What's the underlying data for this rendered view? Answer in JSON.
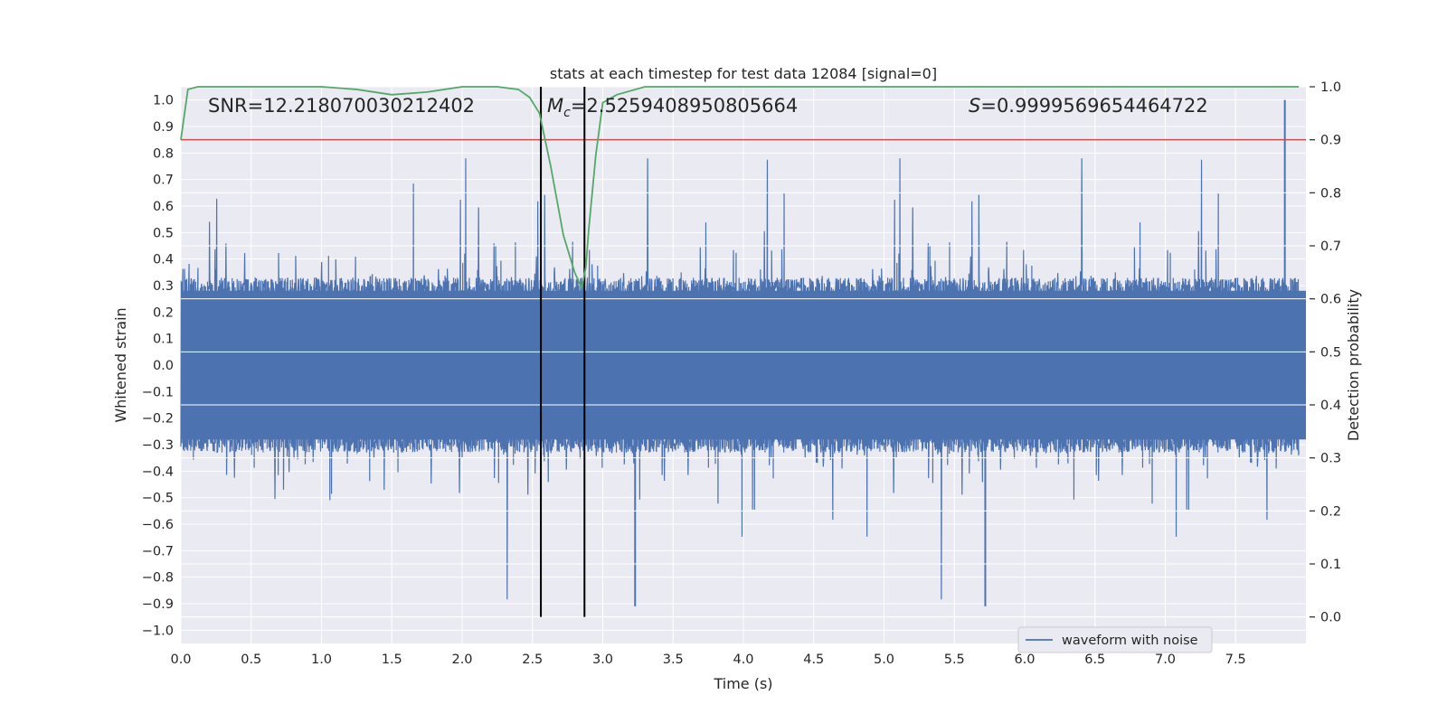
{
  "chart_data": {
    "type": "line",
    "title": "stats at each timestep for test data 12084 [signal=0]",
    "xlabel": "Time (s)",
    "ylabel_left": "Whitened strain",
    "ylabel_right": "Detection probability",
    "xlim": [
      0.0,
      8.0
    ],
    "ylim_left": [
      -1.05,
      1.05
    ],
    "ylim_right": [
      -0.05,
      1.0
    ],
    "x_ticks": [
      "0.0",
      "0.5",
      "1.0",
      "1.5",
      "2.0",
      "2.5",
      "3.0",
      "3.5",
      "4.0",
      "4.5",
      "5.0",
      "5.5",
      "6.0",
      "6.5",
      "7.0",
      "7.5"
    ],
    "y_ticks_left": [
      "-1.0",
      "-0.9",
      "-0.8",
      "-0.7",
      "-0.6",
      "-0.5",
      "-0.4",
      "-0.3",
      "-0.2",
      "-0.1",
      "0.0",
      "0.1",
      "0.2",
      "0.3",
      "0.4",
      "0.5",
      "0.6",
      "0.7",
      "0.8",
      "0.9",
      "1.0"
    ],
    "y_ticks_right": [
      "0.0",
      "0.1",
      "0.2",
      "0.3",
      "0.4",
      "0.5",
      "0.6",
      "0.7",
      "0.8",
      "0.9",
      "1.0"
    ],
    "annotations": {
      "snr": "SNR=12.218070030212402",
      "mc": "Mc=2.5259408950805664",
      "mc_symbol": "M",
      "mc_subscript": "c",
      "mc_value": "=2.5259408950805664",
      "s_symbol": "S",
      "s_value": "=0.9999569654464722"
    },
    "legend": {
      "placement": "lower-right",
      "entries": [
        "waveform with noise"
      ]
    },
    "grid": true,
    "series": [
      {
        "name": "waveform with noise",
        "axis": "left",
        "color": "#4c72b0",
        "kind": "noise",
        "envelope": 0.33,
        "peak_max": 1.0,
        "peak_min": -0.91
      },
      {
        "axis": "right",
        "color": "#55a868",
        "x": [
          0.0,
          0.05,
          0.12,
          0.3,
          1.0,
          1.25,
          1.5,
          1.75,
          2.0,
          2.25,
          2.4,
          2.48,
          2.55,
          2.63,
          2.72,
          2.8,
          2.85,
          2.88,
          2.9,
          2.95,
          3.0,
          3.1,
          3.3,
          3.6,
          4.0,
          5.0,
          6.0,
          7.0,
          7.95
        ],
        "y": [
          0.9,
          0.995,
          1.0,
          1.0,
          1.0,
          0.995,
          0.985,
          0.99,
          1.0,
          1.0,
          0.995,
          0.98,
          0.95,
          0.85,
          0.72,
          0.65,
          0.62,
          0.66,
          0.73,
          0.87,
          0.97,
          0.985,
          1.0,
          1.0,
          1.0,
          1.0,
          1.0,
          1.0,
          1.0
        ]
      },
      {
        "axis": "right",
        "color": "#c44e52",
        "kind": "threshold",
        "value": 0.9
      }
    ],
    "vlines": {
      "x": [
        2.56,
        2.87
      ],
      "ymin": 0.0,
      "ymax": 1.0,
      "color": "#000000"
    },
    "colors": {
      "background": "#eaeaf2",
      "grid": "#ffffff"
    }
  }
}
